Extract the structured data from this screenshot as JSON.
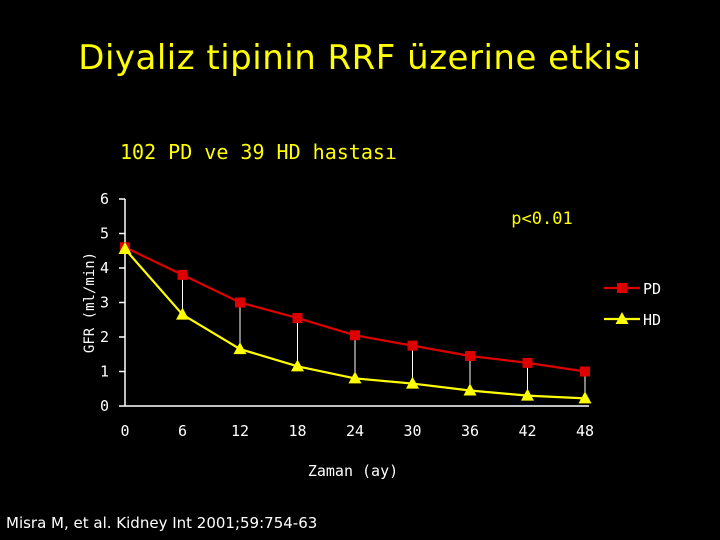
{
  "slide": {
    "title": "Diyaliz tipinin RRF üzerine etkisi",
    "subtitle": "102 PD ve 39 HD hastası",
    "citation": "Misra M, et al. Kidney Int 2001;59:754-63"
  },
  "colors": {
    "background": "#000000",
    "title": "#ffff00",
    "pd_series": "#dd0000",
    "hd_series": "#ffff00",
    "axis": "#ffffff",
    "annotation": "#ffff00"
  },
  "chart_data": {
    "type": "line",
    "xlabel": "Zaman (ay)",
    "ylabel": "GFR (ml/min)",
    "x": [
      0,
      6,
      12,
      18,
      24,
      30,
      36,
      42,
      48
    ],
    "x_tick_labels": [
      "0",
      "6",
      "12",
      "18",
      "24",
      "30",
      "36",
      "42",
      "48"
    ],
    "y_tick_labels": [
      "0",
      "1",
      "2",
      "3",
      "4",
      "5",
      "6"
    ],
    "xlim": [
      0,
      48
    ],
    "ylim": [
      0,
      6
    ],
    "grid": false,
    "legend_position": "right",
    "annotation": "p<0.01",
    "difference_lines": true,
    "series": [
      {
        "name": "PD",
        "marker": "square",
        "values": [
          4.6,
          3.8,
          3.0,
          2.55,
          2.05,
          1.75,
          1.45,
          1.25,
          1.0
        ]
      },
      {
        "name": "HD",
        "marker": "triangle",
        "values": [
          4.55,
          2.65,
          1.65,
          1.15,
          0.8,
          0.65,
          0.45,
          0.3,
          0.22
        ]
      }
    ]
  }
}
